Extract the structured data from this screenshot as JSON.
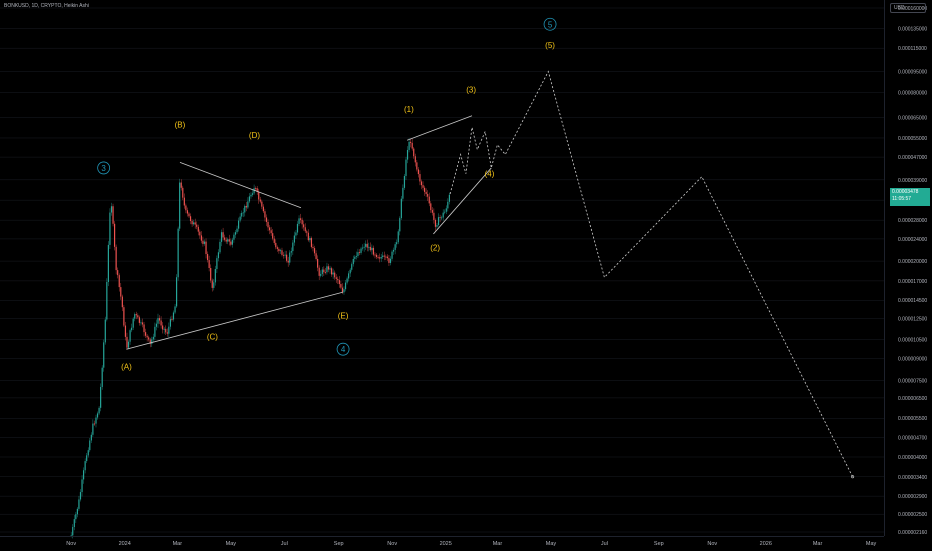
{
  "header": {
    "symbol_text": "BONKUSD, 1D, CRYPTO, Heikin Ashi",
    "currency_label": "USD"
  },
  "price_tag": {
    "price": "0.00003478",
    "countdown": "11:05:57",
    "color": "#22ab94"
  },
  "colors": {
    "background": "#000000",
    "grid": "#1a1d24",
    "candle_up": "#26a69a",
    "candle_down": "#ef5350",
    "wave_label": "#f5c518",
    "circle_label": "#2196b8",
    "trendline": "#c8c8c8",
    "projection": "#d0d0d0"
  },
  "chart_data": {
    "type": "line",
    "title": "",
    "xlabel": "",
    "ylabel": "",
    "scale": "log",
    "chart_style": "heikin-ashi candles",
    "grid": false,
    "legend": "none",
    "x_ticks": [
      "Nov",
      "2024",
      "Mar",
      "May",
      "Jul",
      "Sep",
      "Nov",
      "2025",
      "Mar",
      "May",
      "Jul",
      "Sep",
      "Nov",
      "2026",
      "Mar",
      "May"
    ],
    "y_ticks": [
      "0.000160000",
      "0.000135000",
      "0.000115000",
      "0.000095000",
      "0.000080000",
      "0.000065000",
      "0.000055000",
      "0.000047000",
      "0.000039000",
      "0.000033000",
      "0.000028000",
      "0.000024000",
      "0.000020000",
      "0.000017000",
      "0.000014500",
      "0.000012500",
      "0.000010500",
      "0.000009000",
      "0.000007500",
      "0.000006500",
      "0.000005500",
      "0.000004700",
      "0.000004000",
      "0.000003400",
      "0.000002900",
      "0.000002500",
      "0.000002160"
    ],
    "series": [
      {
        "values": [
          [
            "2023-11-01",
            2.1e-06
          ],
          [
            "2023-11-10",
            2.8e-06
          ],
          [
            "2023-11-18",
            4e-06
          ],
          [
            "2023-11-26",
            5.2e-06
          ],
          [
            "2023-12-03",
            6e-06
          ],
          [
            "2023-12-10",
            1.25e-05
          ],
          [
            "2023-12-14",
            2.5e-05
          ],
          [
            "2023-12-16",
            3.5e-05
          ],
          [
            "2023-12-22",
            1.9e-05
          ],
          [
            "2023-12-29",
            1.4e-05
          ],
          [
            "2024-01-03",
            9.7e-06
          ],
          [
            "2024-01-12",
            1.3e-05
          ],
          [
            "2024-01-22",
            1.15e-05
          ],
          [
            "2024-01-30",
            1e-05
          ],
          [
            "2024-02-08",
            1.25e-05
          ],
          [
            "2024-02-18",
            1.1e-05
          ],
          [
            "2024-02-28",
            1.4e-05
          ],
          [
            "2024-03-04",
            4e-05
          ],
          [
            "2024-03-10",
            3e-05
          ],
          [
            "2024-03-20",
            2.7e-05
          ],
          [
            "2024-04-01",
            2.3e-05
          ],
          [
            "2024-04-10",
            1.6e-05
          ],
          [
            "2024-04-20",
            2.5e-05
          ],
          [
            "2024-05-01",
            2.3e-05
          ],
          [
            "2024-05-15",
            3e-05
          ],
          [
            "2024-05-28",
            3.7e-05
          ],
          [
            "2024-06-08",
            2.9e-05
          ],
          [
            "2024-06-20",
            2.3e-05
          ],
          [
            "2024-07-05",
            2e-05
          ],
          [
            "2024-07-18",
            2.8e-05
          ],
          [
            "2024-08-01",
            2.3e-05
          ],
          [
            "2024-08-10",
            1.8e-05
          ],
          [
            "2024-08-20",
            1.9e-05
          ],
          [
            "2024-09-01",
            1.7e-05
          ],
          [
            "2024-09-06",
            1.55e-05
          ],
          [
            "2024-09-20",
            2.1e-05
          ],
          [
            "2024-10-01",
            2.3e-05
          ],
          [
            "2024-10-15",
            2.1e-05
          ],
          [
            "2024-10-28",
            2e-05
          ],
          [
            "2024-11-06",
            2.3e-05
          ],
          [
            "2024-11-18",
            5e-05
          ],
          [
            "2024-11-22",
            5.4e-05
          ],
          [
            "2024-12-01",
            4e-05
          ],
          [
            "2024-12-12",
            3.3e-05
          ],
          [
            "2024-12-20",
            2.7e-05
          ],
          [
            "2024-12-31",
            3e-05
          ],
          [
            "2025-01-06",
            3.47e-05
          ]
        ]
      }
    ],
    "wave_labels": [
      {
        "text": "(A)",
        "x": "2024-01-03",
        "y": 8.2e-06
      },
      {
        "text": "(B)",
        "x": "2024-03-04",
        "y": 6e-05
      },
      {
        "text": "(C)",
        "x": "2024-04-10",
        "y": 1.05e-05
      },
      {
        "text": "(D)",
        "x": "2024-05-28",
        "y": 5.5e-05
      },
      {
        "text": "(E)",
        "x": "2024-09-06",
        "y": 1.25e-05
      },
      {
        "text": "(1)",
        "x": "2024-11-20",
        "y": 6.8e-05
      },
      {
        "text": "(2)",
        "x": "2024-12-20",
        "y": 2.18e-05
      },
      {
        "text": "(3)",
        "x": "2025-01-30",
        "y": 8e-05
      },
      {
        "text": "(4)",
        "x": "2025-02-20",
        "y": 4e-05
      },
      {
        "text": "(5)",
        "x": "2025-04-30",
        "y": 0.000115
      }
    ],
    "circle_labels": [
      {
        "text": "3",
        "x": "2023-12-08",
        "y": 4.3e-05
      },
      {
        "text": "4",
        "x": "2024-09-06",
        "y": 9.7e-06
      },
      {
        "text": "5",
        "x": "2025-04-30",
        "y": 0.00014
      }
    ],
    "trendlines": [
      {
        "points": [
          [
            "2024-01-03",
            9.7e-06
          ],
          [
            "2024-09-06",
            1.55e-05
          ]
        ]
      },
      {
        "points": [
          [
            "2024-03-04",
            4.5e-05
          ],
          [
            "2024-07-20",
            3.1e-05
          ]
        ]
      },
      {
        "points": [
          [
            "2024-11-18",
            5.4e-05
          ],
          [
            "2025-01-31",
            6.6e-05
          ]
        ]
      },
      {
        "points": [
          [
            "2024-12-18",
            2.5e-05
          ],
          [
            "2025-02-22",
            4.3e-05
          ]
        ]
      }
    ],
    "projection": {
      "points": [
        [
          "2025-01-06",
          3.47e-05
        ],
        [
          "2025-01-18",
          4.8e-05
        ],
        [
          "2025-01-24",
          4.1e-05
        ],
        [
          "2025-01-31",
          6e-05
        ],
        [
          "2025-02-06",
          5e-05
        ],
        [
          "2025-02-15",
          5.8e-05
        ],
        [
          "2025-02-22",
          4.3e-05
        ],
        [
          "2025-03-01",
          5.2e-05
        ],
        [
          "2025-03-10",
          4.8e-05
        ],
        [
          "2025-04-28",
          9.5e-05
        ],
        [
          "2025-07-01",
          1.75e-05
        ],
        [
          "2025-10-20",
          4e-05
        ],
        [
          "2026-04-10",
          3.4e-06
        ]
      ]
    }
  }
}
